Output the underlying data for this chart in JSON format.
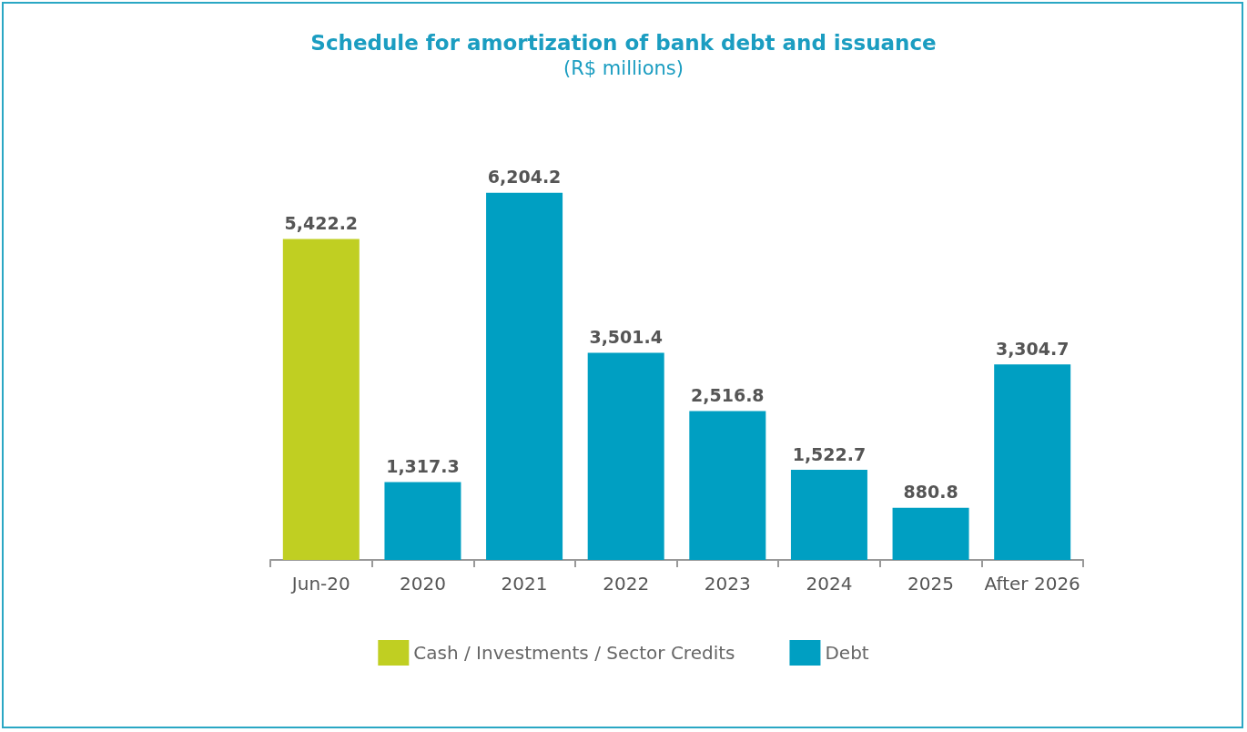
{
  "chart_data": {
    "type": "bar",
    "title": "Schedule for amortization of bank debt and issuance",
    "subtitle": "(R$ millions)",
    "categories": [
      "Jun-20",
      "2020",
      "2021",
      "2022",
      "2023",
      "2024",
      "2025",
      "After 2026"
    ],
    "stacked": true,
    "legend": "bottom",
    "series": [
      {
        "name": "Cash / Investments / Sector Credits",
        "color": "#c0cf22",
        "values": [
          5422.2,
          null,
          null,
          null,
          null,
          null,
          null,
          null
        ],
        "value_labels": [
          "5,422.2",
          null,
          null,
          null,
          null,
          null,
          null,
          null
        ]
      },
      {
        "name": "Debt",
        "color": "#009fc2",
        "values": [
          null,
          1317.3,
          6204.2,
          3501.4,
          2516.8,
          1522.7,
          880.8,
          3304.7
        ],
        "value_labels": [
          null,
          "1,317.3",
          "6,204.2",
          "3,501.4",
          "2,516.8",
          "1,522.7",
          "880.8",
          "3,304.7"
        ]
      }
    ]
  }
}
